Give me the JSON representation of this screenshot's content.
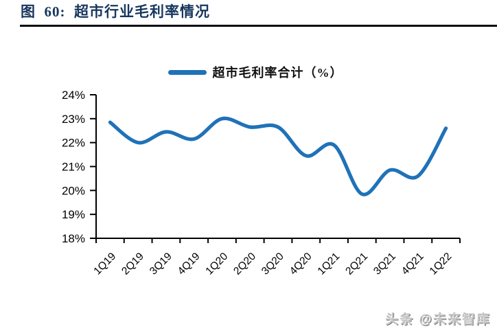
{
  "page": {
    "title": "图  60:  超市行业毛利率情况",
    "watermark": "头条 @未来智库"
  },
  "legend": {
    "label": "超市毛利率合计（%）"
  },
  "colors": {
    "line": "#1F72B8",
    "title": "#17365D",
    "rule": "#05070d",
    "axis": "#000000"
  },
  "chart_data": {
    "type": "line",
    "title": "超市行业毛利率情况",
    "categories": [
      "1Q19",
      "2Q19",
      "3Q19",
      "4Q19",
      "1Q20",
      "2Q20",
      "3Q20",
      "4Q20",
      "1Q21",
      "2Q21",
      "3Q21",
      "4Q21",
      "1Q22"
    ],
    "series": [
      {
        "name": "超市毛利率合计（%）",
        "values": [
          22.85,
          22.0,
          22.45,
          22.15,
          23.0,
          22.65,
          22.65,
          21.45,
          21.9,
          19.85,
          20.85,
          20.6,
          22.6
        ]
      }
    ],
    "xlabel": "",
    "ylabel": "",
    "ylim": [
      18,
      24
    ],
    "yticks": [
      "18%",
      "19%",
      "20%",
      "21%",
      "22%",
      "23%",
      "24%"
    ],
    "grid": false,
    "smooth": true,
    "legend_position": "top"
  }
}
